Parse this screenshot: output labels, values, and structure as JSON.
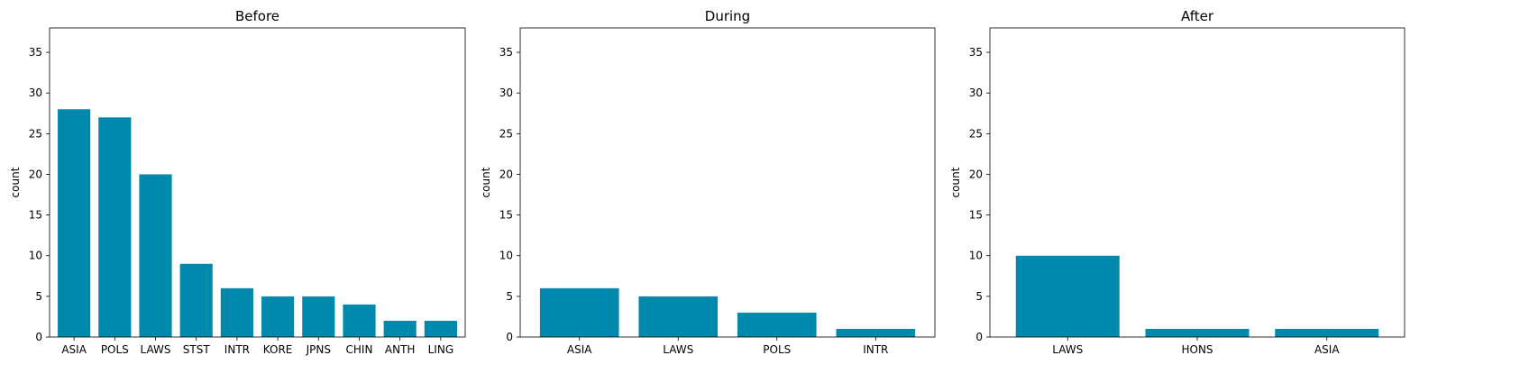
{
  "chart_data": [
    {
      "type": "bar",
      "title": "Before",
      "xlabel": "",
      "ylabel": "count",
      "ylim": [
        0,
        38
      ],
      "yticks": [
        0,
        5,
        10,
        15,
        20,
        25,
        30,
        35
      ],
      "categories": [
        "ASIA",
        "POLS",
        "LAWS",
        "STST",
        "INTR",
        "KORE",
        "JPNS",
        "CHIN",
        "ANTH",
        "LING"
      ],
      "values": [
        28,
        27,
        20,
        9,
        6,
        5,
        5,
        4,
        2,
        2
      ],
      "color": "#0088ad",
      "grid": false
    },
    {
      "type": "bar",
      "title": "During",
      "xlabel": "",
      "ylabel": "count",
      "ylim": [
        0,
        38
      ],
      "yticks": [
        0,
        5,
        10,
        15,
        20,
        25,
        30,
        35
      ],
      "categories": [
        "ASIA",
        "LAWS",
        "POLS",
        "INTR"
      ],
      "values": [
        6,
        5,
        3,
        1
      ],
      "color": "#0088ad",
      "grid": false
    },
    {
      "type": "bar",
      "title": "After",
      "xlabel": "",
      "ylabel": "count",
      "ylim": [
        0,
        38
      ],
      "yticks": [
        0,
        5,
        10,
        15,
        20,
        25,
        30,
        35
      ],
      "categories": [
        "LAWS",
        "HONS",
        "ASIA"
      ],
      "values": [
        10,
        1,
        1
      ],
      "color": "#0088ad",
      "grid": false
    }
  ]
}
